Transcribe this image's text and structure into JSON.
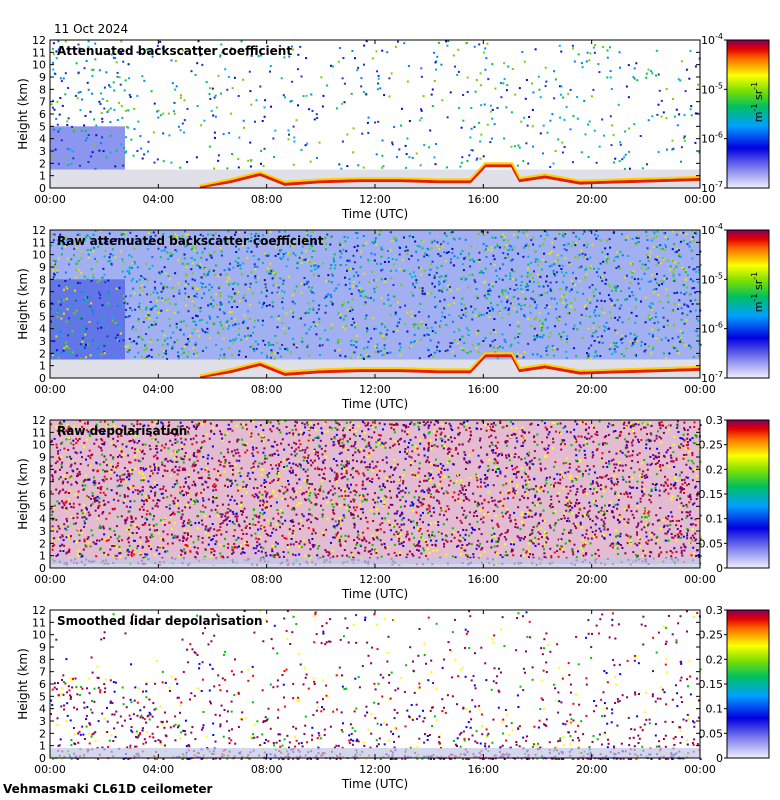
{
  "date": "11 Oct 2024",
  "footer": "Vehmasmaki CL61D ceilometer",
  "chart_data": [
    {
      "type": "heatmap",
      "title": "Attenuated backscatter coefficient",
      "xlabel": "Time (UTC)",
      "ylabel": "Height (km)",
      "xticks": [
        "00:00",
        "04:00",
        "08:00",
        "12:00",
        "16:00",
        "20:00",
        "00:00"
      ],
      "yticks": [
        "0",
        "1",
        "2",
        "3",
        "4",
        "5",
        "6",
        "7",
        "8",
        "9",
        "10",
        "11",
        "12"
      ],
      "ylim": [
        0,
        12
      ],
      "colorbar": {
        "scale": "log",
        "ticks": [
          {
            "base": "10",
            "exp": "-4"
          },
          {
            "base": "10",
            "exp": "-5"
          },
          {
            "base": "10",
            "exp": "-6"
          },
          {
            "base": "10",
            "exp": "-7"
          }
        ],
        "unit": {
          "m": "m",
          "m_exp": "-1",
          "sr": "sr",
          "sr_exp": "-1"
        }
      }
    },
    {
      "type": "heatmap",
      "title": "Raw attenuated backscatter coefficient",
      "xlabel": "Time (UTC)",
      "ylabel": "Height (km)",
      "xticks": [
        "00:00",
        "04:00",
        "08:00",
        "12:00",
        "16:00",
        "20:00",
        "00:00"
      ],
      "yticks": [
        "0",
        "1",
        "2",
        "3",
        "4",
        "5",
        "6",
        "7",
        "8",
        "9",
        "10",
        "11",
        "12"
      ],
      "ylim": [
        0,
        12
      ],
      "colorbar": {
        "scale": "log",
        "ticks": [
          {
            "base": "10",
            "exp": "-4"
          },
          {
            "base": "10",
            "exp": "-5"
          },
          {
            "base": "10",
            "exp": "-6"
          },
          {
            "base": "10",
            "exp": "-7"
          }
        ],
        "unit": {
          "m": "m",
          "m_exp": "-1",
          "sr": "sr",
          "sr_exp": "-1"
        }
      }
    },
    {
      "type": "heatmap",
      "title": "Raw depolarisation",
      "xlabel": "Time (UTC)",
      "ylabel": "Height (km)",
      "xticks": [
        "00:00",
        "04:00",
        "08:00",
        "12:00",
        "16:00",
        "20:00",
        "00:00"
      ],
      "yticks": [
        "0",
        "1",
        "2",
        "3",
        "4",
        "5",
        "6",
        "7",
        "8",
        "9",
        "10",
        "11",
        "12"
      ],
      "ylim": [
        0,
        12
      ],
      "colorbar": {
        "scale": "linear",
        "ticks": [
          "0.3",
          "0.25",
          "0.2",
          "0.15",
          "0.1",
          "0.05",
          "0"
        ],
        "range": [
          0,
          0.3
        ]
      }
    },
    {
      "type": "heatmap",
      "title": "Smoothed lidar depolarisation",
      "xlabel": "Time (UTC)",
      "ylabel": "Height (km)",
      "xticks": [
        "00:00",
        "04:00",
        "08:00",
        "12:00",
        "16:00",
        "20:00",
        "00:00"
      ],
      "yticks": [
        "0",
        "1",
        "2",
        "3",
        "4",
        "5",
        "6",
        "7",
        "8",
        "9",
        "10",
        "11",
        "12"
      ],
      "ylim": [
        0,
        12
      ],
      "colorbar": {
        "scale": "linear",
        "ticks": [
          "0.3",
          "0.25",
          "0.2",
          "0.15",
          "0.1",
          "0.05",
          "0"
        ],
        "range": [
          0,
          0.3
        ]
      }
    }
  ]
}
